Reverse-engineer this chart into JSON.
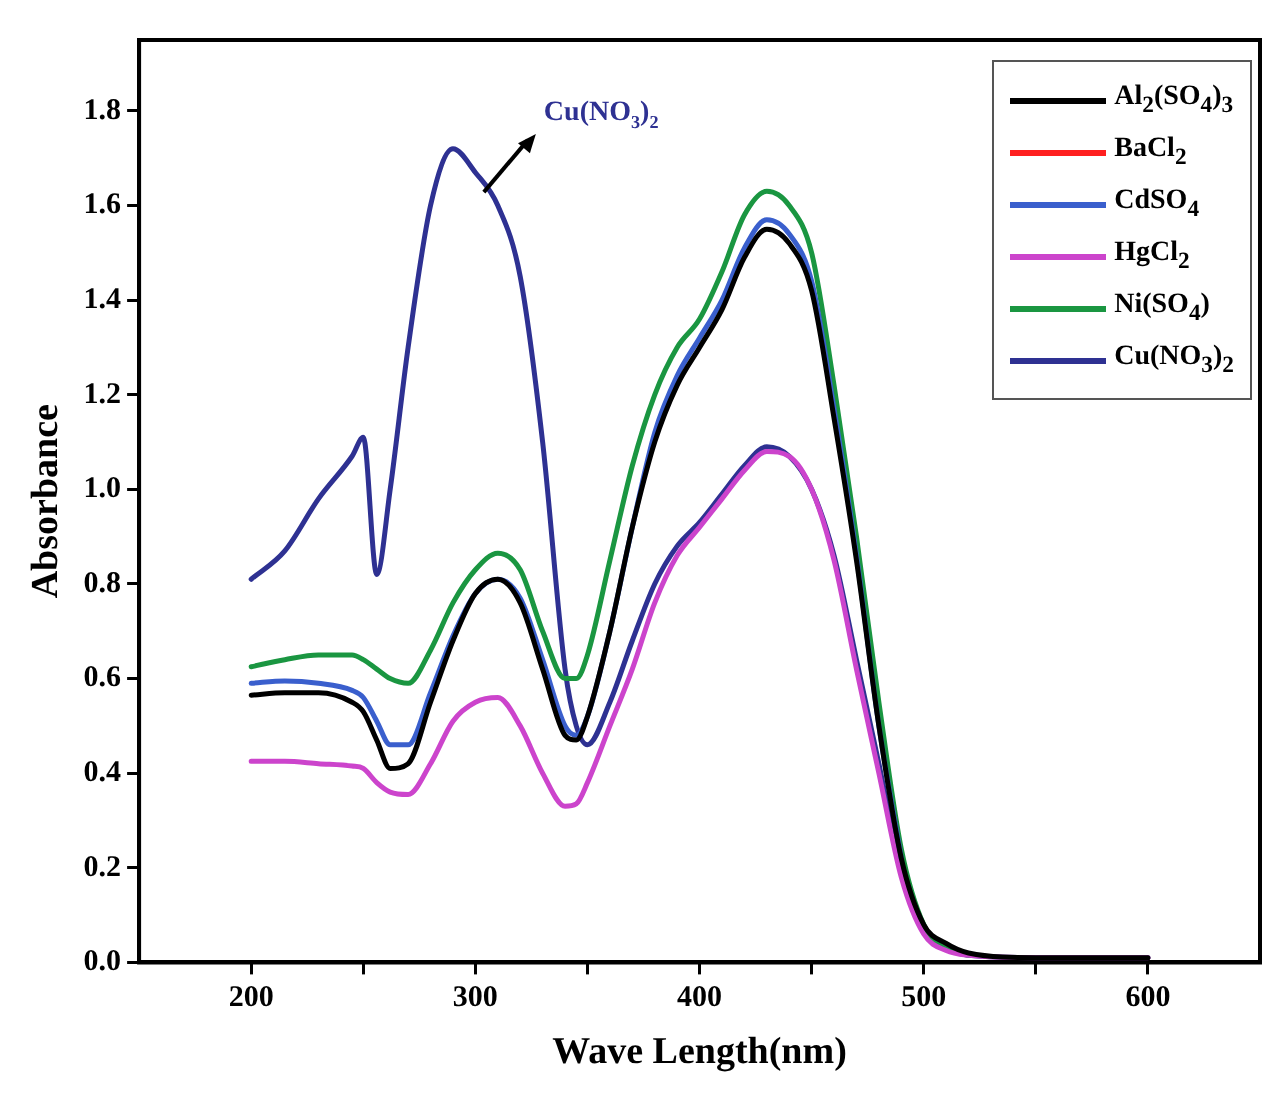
{
  "chart_data": {
    "type": "line",
    "xlabel": "Wave Length(nm)",
    "ylabel": "Absorbance",
    "x": [
      200,
      215,
      230,
      245,
      250,
      256,
      262,
      270,
      280,
      290,
      300,
      310,
      320,
      330,
      340,
      345,
      350,
      360,
      370,
      380,
      390,
      400,
      410,
      420,
      430,
      440,
      450,
      460,
      470,
      480,
      490,
      500,
      510,
      520,
      550,
      600
    ],
    "series": [
      {
        "name": "Al$_{2}$(SO$_{4}$)$_{3}$",
        "color": "#000000",
        "values": [
          0.565,
          0.57,
          0.57,
          0.55,
          0.53,
          0.47,
          0.41,
          0.42,
          0.55,
          0.68,
          0.78,
          0.81,
          0.76,
          0.62,
          0.48,
          0.47,
          0.52,
          0.7,
          0.92,
          1.1,
          1.22,
          1.3,
          1.38,
          1.49,
          1.55,
          1.52,
          1.42,
          1.15,
          0.85,
          0.5,
          0.22,
          0.08,
          0.04,
          0.02,
          0.01,
          0.01
        ]
      },
      {
        "name": "BaCl$_{2}$",
        "color": "#ff2020",
        "values": [
          null,
          null,
          null,
          null,
          null,
          null,
          null,
          null,
          null,
          null,
          null,
          null,
          null,
          null,
          null,
          null,
          null,
          null,
          null,
          null,
          null,
          null,
          null,
          null,
          null,
          null,
          null,
          null,
          null,
          null,
          null,
          null,
          null,
          null,
          null,
          null
        ]
      },
      {
        "name": "CdSO$_{4}$",
        "color": "#3a5fcd",
        "values": [
          0.59,
          0.595,
          0.59,
          0.575,
          0.56,
          0.51,
          0.46,
          0.46,
          0.57,
          0.69,
          0.78,
          0.81,
          0.77,
          0.64,
          0.5,
          0.48,
          0.52,
          0.7,
          0.92,
          1.12,
          1.24,
          1.32,
          1.4,
          1.51,
          1.57,
          1.54,
          1.44,
          1.17,
          0.86,
          0.5,
          0.22,
          null,
          null,
          null,
          null,
          null
        ]
      },
      {
        "name": "HgCl$_{2}$",
        "color": "#cc44cc",
        "values": [
          0.425,
          0.425,
          0.42,
          0.415,
          0.41,
          0.38,
          0.36,
          0.355,
          0.42,
          0.51,
          0.55,
          0.56,
          0.5,
          0.4,
          0.33,
          0.335,
          0.38,
          0.5,
          0.62,
          0.76,
          0.86,
          0.92,
          0.98,
          1.04,
          1.08,
          1.07,
          1.0,
          0.85,
          0.62,
          0.4,
          0.18,
          0.06,
          0.025,
          0.015,
          0.01,
          0.01
        ]
      },
      {
        "name": "Ni(SO$_{4}$)",
        "color": "#1a9641",
        "values": [
          0.625,
          0.64,
          0.65,
          0.65,
          0.64,
          0.62,
          0.6,
          0.59,
          0.66,
          0.76,
          0.83,
          0.865,
          0.83,
          0.7,
          0.6,
          0.6,
          0.65,
          0.85,
          1.05,
          1.2,
          1.3,
          1.36,
          1.46,
          1.58,
          1.63,
          1.6,
          1.5,
          1.22,
          0.9,
          0.55,
          0.24,
          0.08,
          0.03,
          0.015,
          null,
          null
        ]
      },
      {
        "name": "Cu(NO$_{3}$)$_{2}$",
        "color": "#2e3192",
        "values": [
          0.81,
          0.87,
          0.98,
          1.07,
          1.11,
          0.82,
          1.0,
          1.3,
          1.6,
          1.72,
          1.67,
          1.6,
          1.45,
          1.1,
          0.62,
          0.5,
          0.46,
          0.55,
          0.68,
          0.8,
          0.88,
          0.93,
          0.99,
          1.05,
          1.09,
          1.07,
          1.0,
          0.86,
          0.64,
          0.42,
          0.19,
          0.07,
          0.03,
          0.015,
          0.01,
          0.01
        ]
      }
    ],
    "xlim": [
      150,
      650
    ],
    "xticks": [
      200,
      {
        "value": 250,
        "label": null
      },
      300,
      {
        "value": 350,
        "label": null
      },
      400,
      {
        "value": 450,
        "label": null
      },
      500,
      {
        "value": 550,
        "label": null
      },
      600
    ],
    "ylim": [
      0,
      1.95
    ],
    "yticks": [
      {
        "value": 0,
        "label": "0.0"
      },
      {
        "value": 0.2,
        "label": "0.2"
      },
      {
        "value": 0.4,
        "label": "0.4"
      },
      {
        "value": 0.6,
        "label": "0.6"
      },
      {
        "value": 0.8,
        "label": "0.8"
      },
      {
        "value": 1.0,
        "label": "1.0"
      },
      {
        "value": 1.2,
        "label": "1.2"
      },
      {
        "value": 1.4,
        "label": "1.4"
      },
      {
        "value": 1.6,
        "label": "1.6"
      },
      {
        "value": 1.8,
        "label": "1.8"
      }
    ],
    "annotations": [
      {
        "text": "Cu(NO$_{3}$)$_{2}$",
        "x": 302,
        "y": 1.62
      }
    ],
    "legend": "top right",
    "grid": false,
    "marker": "none",
    "line_style": "solid"
  }
}
